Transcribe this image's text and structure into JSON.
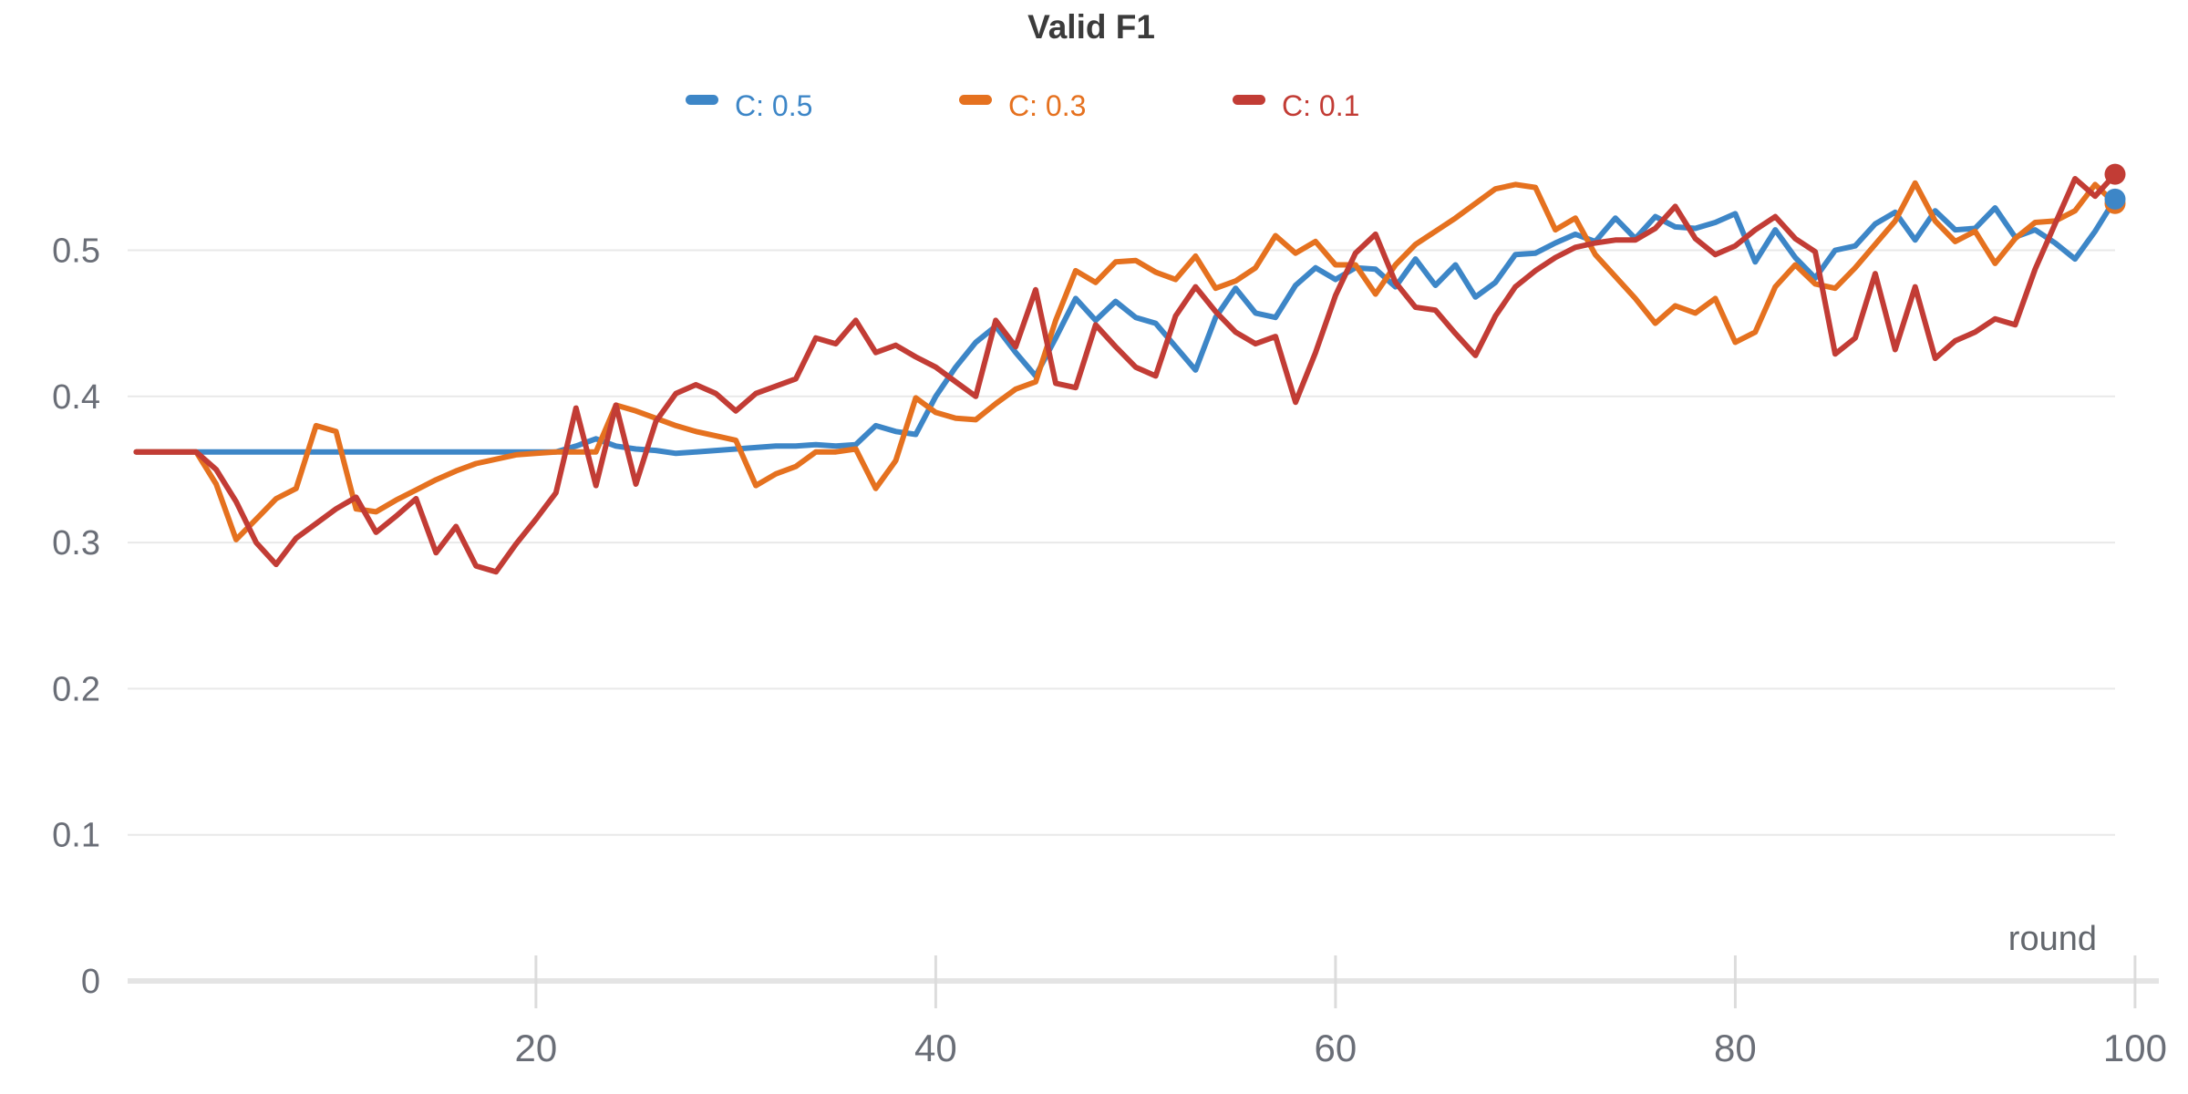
{
  "chart_data": {
    "type": "line",
    "title": "Valid F1",
    "xlabel": "round",
    "ylabel": "",
    "x_start": 0,
    "x_end": 99,
    "x_ticks": [
      20,
      40,
      60,
      80,
      100
    ],
    "y_ticks": [
      0,
      0.1,
      0.2,
      0.3,
      0.4,
      0.5
    ],
    "ylim": [
      0,
      0.58
    ],
    "grid": true,
    "legend_position": "top-center",
    "background": "#ffffff",
    "grid_color": "#e9e9e9",
    "axis_line_color": "#e4e4e4",
    "tick_mark_color": "#dcdcdc",
    "title_color": "#3b3b3b",
    "tick_text_color": "#6a6e77",
    "series": [
      {
        "name": "C: 0.5",
        "color": "#3d86c7",
        "end_marker": true,
        "values": [
          0.362,
          0.362,
          0.362,
          0.362,
          0.362,
          0.362,
          0.362,
          0.362,
          0.362,
          0.362,
          0.362,
          0.362,
          0.362,
          0.362,
          0.362,
          0.362,
          0.362,
          0.362,
          0.362,
          0.362,
          0.362,
          0.362,
          0.366,
          0.371,
          0.366,
          0.364,
          0.363,
          0.361,
          0.362,
          0.363,
          0.364,
          0.365,
          0.366,
          0.366,
          0.367,
          0.366,
          0.367,
          0.38,
          0.376,
          0.374,
          0.4,
          0.42,
          0.437,
          0.448,
          0.43,
          0.414,
          0.44,
          0.467,
          0.452,
          0.465,
          0.454,
          0.45,
          0.434,
          0.418,
          0.454,
          0.474,
          0.457,
          0.454,
          0.476,
          0.488,
          0.48,
          0.488,
          0.487,
          0.475,
          0.494,
          0.476,
          0.49,
          0.468,
          0.478,
          0.497,
          0.498,
          0.505,
          0.511,
          0.506,
          0.522,
          0.508,
          0.523,
          0.516,
          0.515,
          0.519,
          0.525,
          0.492,
          0.514,
          0.495,
          0.481,
          0.5,
          0.503,
          0.518,
          0.526,
          0.507,
          0.527,
          0.514,
          0.515,
          0.529,
          0.509,
          0.514,
          0.505,
          0.494,
          0.513,
          0.535
        ]
      },
      {
        "name": "C: 0.3",
        "color": "#e5711f",
        "end_marker": true,
        "values": [
          0.362,
          0.362,
          0.362,
          0.362,
          0.34,
          0.302,
          0.316,
          0.33,
          0.337,
          0.38,
          0.376,
          0.323,
          0.321,
          0.329,
          0.336,
          0.343,
          0.349,
          0.354,
          0.357,
          0.36,
          0.361,
          0.362,
          0.362,
          0.362,
          0.394,
          0.39,
          0.385,
          0.38,
          0.376,
          0.373,
          0.37,
          0.339,
          0.347,
          0.352,
          0.362,
          0.362,
          0.364,
          0.337,
          0.356,
          0.399,
          0.389,
          0.385,
          0.384,
          0.395,
          0.405,
          0.41,
          0.452,
          0.486,
          0.478,
          0.492,
          0.493,
          0.485,
          0.48,
          0.496,
          0.474,
          0.479,
          0.488,
          0.51,
          0.498,
          0.506,
          0.49,
          0.49,
          0.47,
          0.49,
          0.504,
          0.513,
          0.522,
          0.532,
          0.542,
          0.545,
          0.543,
          0.514,
          0.522,
          0.497,
          0.482,
          0.467,
          0.45,
          0.462,
          0.457,
          0.467,
          0.437,
          0.444,
          0.475,
          0.49,
          0.477,
          0.474,
          0.488,
          0.504,
          0.52,
          0.546,
          0.52,
          0.506,
          0.513,
          0.491,
          0.508,
          0.519,
          0.52,
          0.527,
          0.545,
          0.532
        ]
      },
      {
        "name": "C: 0.1",
        "color": "#c23c35",
        "end_marker": true,
        "values": [
          0.362,
          0.362,
          0.362,
          0.362,
          0.35,
          0.328,
          0.3,
          0.285,
          0.303,
          0.313,
          0.323,
          0.331,
          0.307,
          0.318,
          0.33,
          0.293,
          0.311,
          0.284,
          0.28,
          0.299,
          0.316,
          0.334,
          0.392,
          0.339,
          0.394,
          0.34,
          0.383,
          0.402,
          0.408,
          0.402,
          0.39,
          0.402,
          0.407,
          0.412,
          0.44,
          0.436,
          0.452,
          0.43,
          0.435,
          0.427,
          0.42,
          0.41,
          0.4,
          0.452,
          0.434,
          0.473,
          0.409,
          0.406,
          0.449,
          0.434,
          0.42,
          0.414,
          0.455,
          0.475,
          0.458,
          0.444,
          0.436,
          0.441,
          0.396,
          0.43,
          0.469,
          0.498,
          0.511,
          0.478,
          0.461,
          0.459,
          0.443,
          0.428,
          0.455,
          0.475,
          0.486,
          0.495,
          0.502,
          0.505,
          0.507,
          0.507,
          0.515,
          0.53,
          0.508,
          0.497,
          0.503,
          0.514,
          0.523,
          0.508,
          0.499,
          0.429,
          0.44,
          0.484,
          0.432,
          0.475,
          0.426,
          0.438,
          0.444,
          0.453,
          0.449,
          0.487,
          0.518,
          0.549,
          0.537,
          0.552
        ]
      }
    ]
  }
}
